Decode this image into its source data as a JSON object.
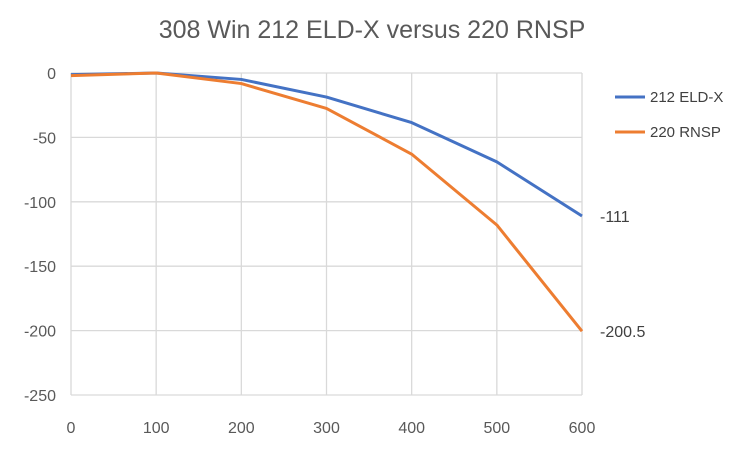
{
  "chart_data": {
    "type": "line",
    "title": "308 Win  212 ELD-X  versus  220 RNSP",
    "xlabel": "",
    "ylabel": "",
    "x": [
      0,
      100,
      200,
      300,
      400,
      500,
      600
    ],
    "xticks": [
      "0",
      "100",
      "200",
      "300",
      "400",
      "500",
      "600"
    ],
    "yticks": [
      "0",
      "-50",
      "-100",
      "-150",
      "-200",
      "-250"
    ],
    "xlim": [
      0,
      600
    ],
    "ylim": [
      -250,
      0
    ],
    "grid": true,
    "legend_position": "right",
    "series": [
      {
        "name": "212 ELD-X",
        "color": "#4472C4",
        "values": [
          -1.3,
          0,
          -5,
          -18.7,
          -38.5,
          -69,
          -111
        ],
        "end_label": "-111"
      },
      {
        "name": "220 RNSP",
        "color": "#ED7D31",
        "values": [
          -2,
          0,
          -8.2,
          -27.5,
          -63,
          -118,
          -200.5
        ],
        "end_label": "-200.5"
      }
    ]
  }
}
